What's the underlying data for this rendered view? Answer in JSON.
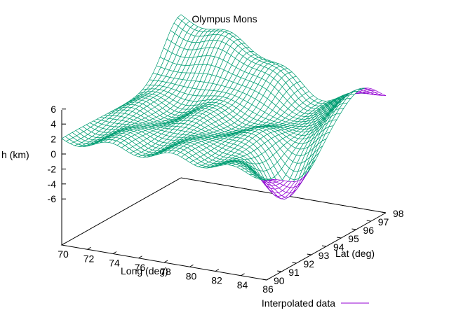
{
  "chart_data": {
    "type": "surface",
    "title": "Olympus Mons",
    "xlabel": "Long (deg)",
    "ylabel": "Lat (deg)",
    "zlabel": "h (km)",
    "x_ticks": [
      70,
      72,
      74,
      76,
      78,
      80,
      82,
      84,
      86
    ],
    "y_ticks": [
      90,
      91,
      92,
      93,
      94,
      95,
      96,
      97,
      98
    ],
    "z_ticks": [
      6,
      4,
      2,
      0,
      -2,
      -4,
      -6
    ],
    "xlim": [
      70,
      86
    ],
    "ylim": [
      90,
      98
    ],
    "zlim": [
      -6,
      6
    ],
    "grid": false,
    "legend_position": "bottom-right",
    "series": [
      {
        "name": "Interpolated data",
        "style": "mesh",
        "color_top": "#009e73",
        "color_bottom": "#9400d3"
      }
    ]
  }
}
